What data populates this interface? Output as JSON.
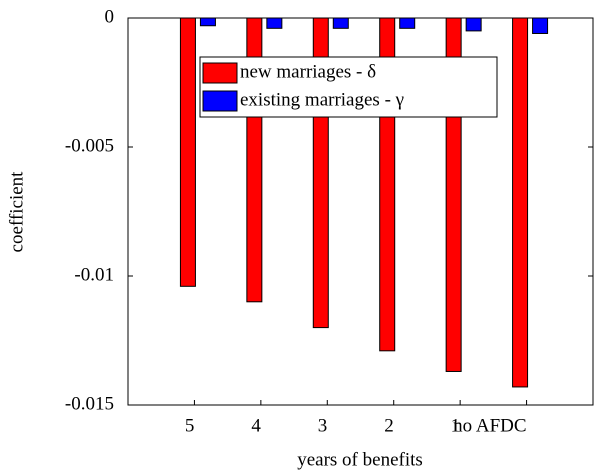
{
  "chart_data": {
    "type": "bar",
    "x_label": "years of benefits",
    "y_label": "coefficient",
    "categories": [
      "5",
      "4",
      "3",
      "2",
      "1",
      "no AFDC"
    ],
    "series": [
      {
        "name": "new marriages - δ",
        "color": "#ff0000",
        "values": [
          -0.0104,
          -0.011,
          -0.012,
          -0.0129,
          -0.0137,
          -0.0143
        ]
      },
      {
        "name": "existing marriages - γ",
        "color": "#0000ff",
        "values": [
          -0.0003,
          -0.0004,
          -0.0004,
          -0.0004,
          -0.0005,
          -0.0006
        ]
      }
    ],
    "ylim": [
      -0.015,
      0
    ],
    "yticks": [
      0,
      -0.005,
      -0.01,
      -0.015
    ],
    "grid": false
  }
}
